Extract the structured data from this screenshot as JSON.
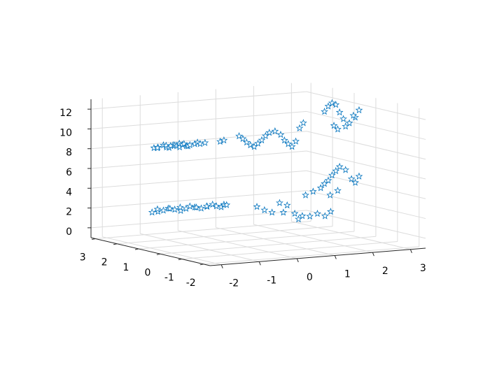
{
  "chart_data": {
    "type": "scatter3d",
    "xlim": [
      -2.3,
      3.4
    ],
    "ylim": [
      -2.3,
      3.2
    ],
    "zlim": [
      -1,
      13
    ],
    "xticks": [
      -2,
      -1,
      0,
      1,
      2,
      3
    ],
    "yticks": [
      -2,
      -1,
      0,
      1,
      2,
      3
    ],
    "zticks": [
      0,
      2,
      4,
      6,
      8,
      10,
      12
    ],
    "grid": true,
    "marker": "star",
    "series": [
      {
        "color": "#0072bd",
        "x": [
          -0.75,
          -0.7,
          -0.6,
          -0.5,
          -0.45,
          -0.4,
          -0.35,
          -0.3,
          -0.25,
          -0.2,
          -0.15,
          -0.1,
          -0.05,
          0,
          0.05,
          0.1,
          0.15,
          0.2,
          0.3,
          0.4,
          0.5,
          0.6,
          1.0,
          1.1,
          1.5,
          1.6,
          1.7,
          1.8,
          1.9,
          2.0,
          2.1,
          2.2,
          2.3,
          2.45,
          2.6,
          2.7,
          2.8,
          2.9,
          3.0,
          3.1,
          3.2,
          2.5,
          2.6,
          2.7,
          2.8,
          2.9,
          3.0,
          3.1,
          3.2,
          3.3,
          2.75,
          2.85,
          3.0,
          3.15,
          2.0,
          2.2,
          2.4,
          2.5,
          2.6,
          2.7,
          2.8,
          2.9,
          3.0,
          3.1,
          3.2,
          3.3,
          2.65,
          2.85,
          -0.8,
          -0.7,
          -0.6,
          -0.5,
          -0.4,
          -0.3,
          -0.2,
          -0.1,
          0,
          0.1,
          0.2,
          0.3,
          0.4,
          0.5,
          0.6,
          0.7,
          0.8,
          0.9,
          1.0,
          1.1,
          1.2,
          1.4,
          1.6,
          1.8,
          2.0,
          2.2,
          2.4,
          2.6,
          2.8,
          3.0,
          3.2,
          3.35,
          2.1,
          2.5
        ],
        "y": [
          3,
          2.9,
          3.1,
          3,
          2.95,
          3.05,
          3,
          2.9,
          3.1,
          3,
          3,
          2.95,
          3.05,
          3,
          2.9,
          3.1,
          3,
          3,
          2.95,
          3,
          3.05,
          3,
          3,
          3,
          3,
          3,
          3,
          3,
          3,
          3,
          3,
          3,
          3,
          3,
          3,
          3,
          3,
          3,
          3,
          3,
          3,
          0.8,
          0.8,
          0.8,
          0.8,
          0.8,
          0.8,
          0.7,
          0.6,
          0.6,
          0.8,
          0.8,
          0.7,
          0.6,
          0.8,
          0.8,
          0.8,
          0.8,
          0.8,
          0.8,
          0.8,
          0.8,
          0.7,
          0.6,
          0.6,
          0.6,
          0.8,
          0.8,
          3,
          2.9,
          3.1,
          3,
          2.95,
          3.05,
          3,
          2.9,
          3.1,
          3,
          3,
          2.95,
          3.05,
          3,
          2.9,
          3.1,
          3,
          3,
          2.95,
          3,
          3.05,
          2,
          2,
          2,
          2,
          2,
          2,
          2,
          2,
          2,
          2,
          2,
          2,
          2
        ],
        "z": [
          7.7,
          7.8,
          7.6,
          7.9,
          7.7,
          7.8,
          7.6,
          7.9,
          7.7,
          7.8,
          7.7,
          7.6,
          7.9,
          7.8,
          7.7,
          7.8,
          7.6,
          7.7,
          7.8,
          7.9,
          7.7,
          7.8,
          7.8,
          7.9,
          8.2,
          7.9,
          7.5,
          7.2,
          7.0,
          7.3,
          7.6,
          8.0,
          8.3,
          8.4,
          8.0,
          7.4,
          7.0,
          6.7,
          7.2,
          8.5,
          9.0,
          11.5,
          12.0,
          12.3,
          12.1,
          11.3,
          10.6,
          10.2,
          10.8,
          11.5,
          10.0,
          9.6,
          9.9,
          11.0,
          3.2,
          3.5,
          3.8,
          4.2,
          4.5,
          5.0,
          5.4,
          5.8,
          5.5,
          4.6,
          4.2,
          4.8,
          3.0,
          3.4,
          1.2,
          1.3,
          1.4,
          1.3,
          1.5,
          1.4,
          1.3,
          1.2,
          1.4,
          1.3,
          1.5,
          1.4,
          1.3,
          1.2,
          1.4,
          1.3,
          1.5,
          1.3,
          1.2,
          1.4,
          1.3,
          1.6,
          1.2,
          0.9,
          1.8,
          1.5,
          0.6,
          0.3,
          0.2,
          0.4,
          0.1,
          0.5,
          0.8,
          0.0
        ]
      }
    ]
  }
}
